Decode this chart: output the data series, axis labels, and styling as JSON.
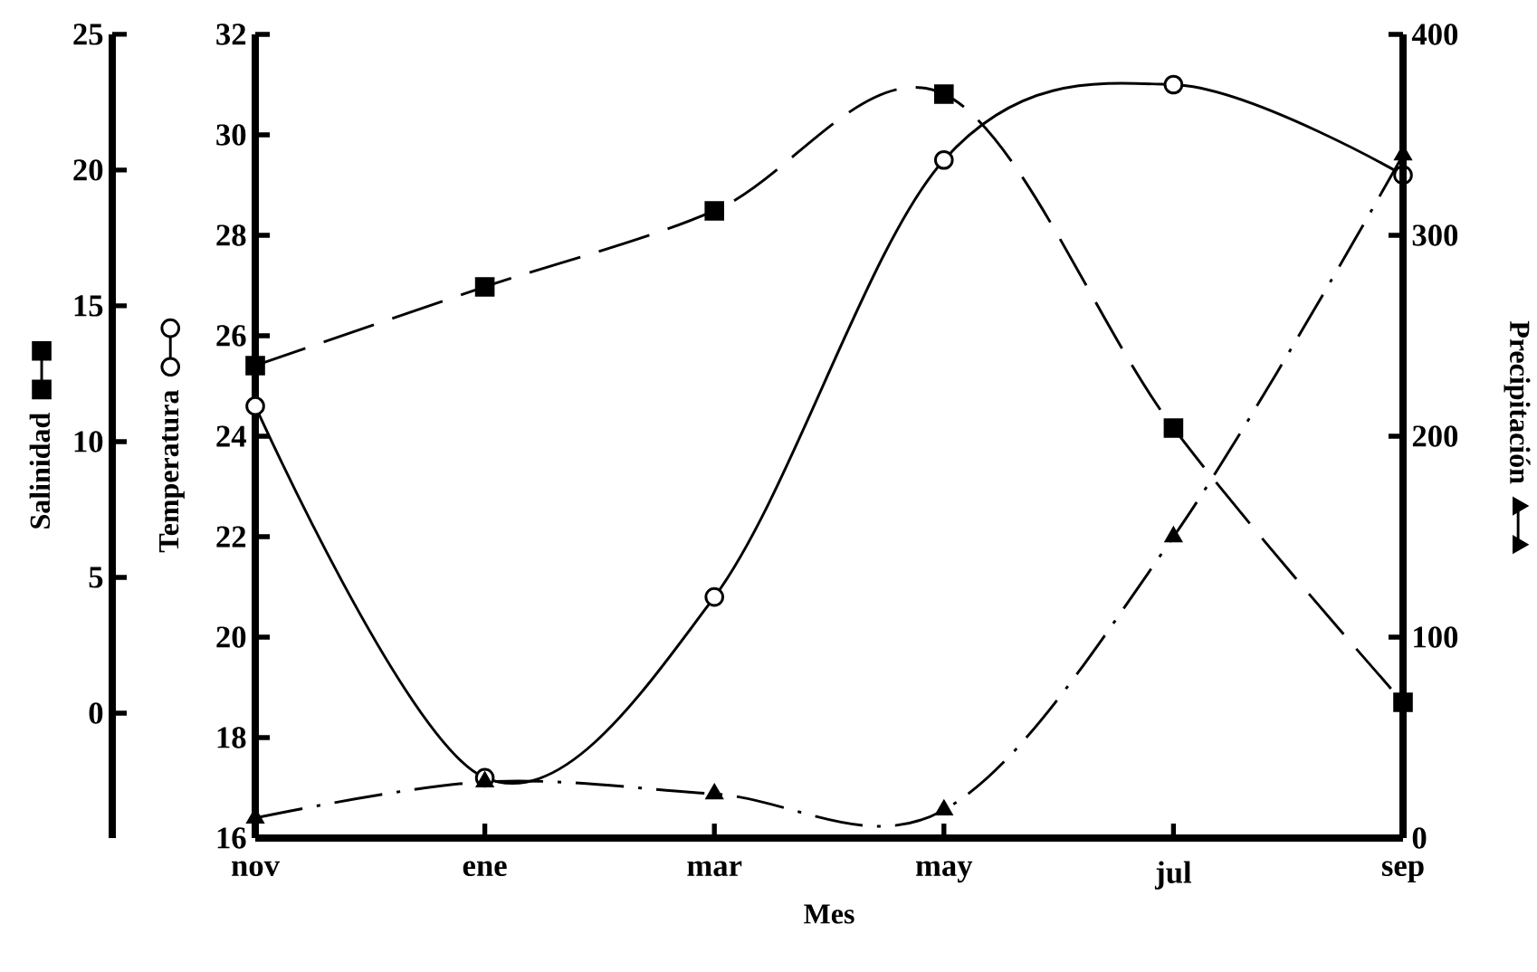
{
  "chart_data": {
    "type": "line",
    "xlabel": "Mes",
    "ylabel": "Temperatura",
    "y2label": "Precipitación",
    "y3label": "Salinidad",
    "categories": [
      "nov",
      "ene",
      "mar",
      "may",
      "jul",
      "sep"
    ],
    "ylim": [
      16,
      32
    ],
    "yticks": [
      16,
      18,
      20,
      22,
      24,
      26,
      28,
      30,
      32
    ],
    "y2lim": [
      0,
      400
    ],
    "y2ticks": [
      0,
      100,
      200,
      300,
      400
    ],
    "y3lim": [
      -4.6,
      25
    ],
    "y3ticks": [
      0,
      5,
      10,
      15,
      20,
      25
    ],
    "series": [
      {
        "axis": "y3",
        "color": "#000000",
        "marker": "square",
        "line_style": "dashed",
        "values": [
          12.8,
          15.7,
          18.5,
          22.8,
          10.5,
          0.4
        ]
      },
      {
        "axis": "y",
        "color": "#000000",
        "marker": "circle",
        "line_style": "solid",
        "values": [
          24.6,
          17.2,
          20.8,
          29.5,
          31.0,
          29.2
        ]
      },
      {
        "axis": "y2",
        "color": "#000000",
        "marker": "triangle",
        "line_style": "dashdot",
        "values": [
          10,
          28,
          22,
          14,
          150,
          340
        ]
      }
    ]
  }
}
